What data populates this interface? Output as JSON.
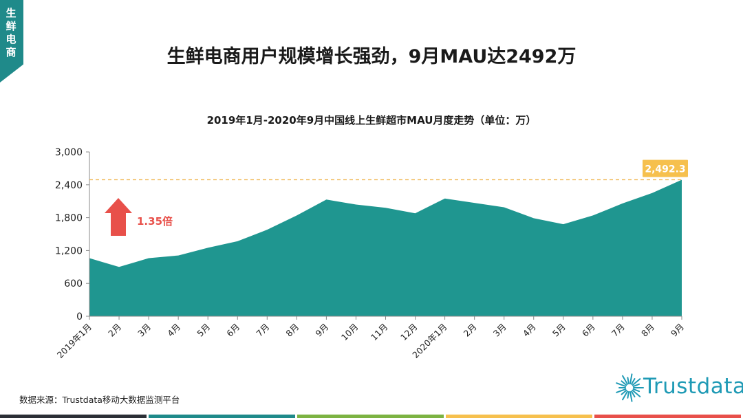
{
  "side_tab": {
    "label": "生鲜电商",
    "color": "#1f8a8a"
  },
  "page_title": "生鲜电商用户规模增长强劲，9月MAU达2492万",
  "source": "数据来源：Trustdata移动大数据监测平台",
  "logo": {
    "text": "Trustdata",
    "icon": "sunburst-icon"
  },
  "bottom_bar_colors": [
    "#2b2f36",
    "#1f8a8a",
    "#7cb342",
    "#f6c04d",
    "#e8504a"
  ],
  "chart_data": {
    "type": "area",
    "title": "2019年1月-2020年9月中国线上生鲜超市MAU月度走势（单位：万）",
    "categories": [
      "2019年1月",
      "2月",
      "3月",
      "4月",
      "5月",
      "6月",
      "7月",
      "8月",
      "9月",
      "10月",
      "11月",
      "12月",
      "2020年1月",
      "2月",
      "3月",
      "4月",
      "5月",
      "6月",
      "7月",
      "8月",
      "9月"
    ],
    "values": [
      1060,
      900,
      1060,
      1110,
      1250,
      1370,
      1580,
      1840,
      2130,
      2040,
      1980,
      1880,
      2150,
      2070,
      1990,
      1790,
      1680,
      1840,
      2060,
      2250,
      2492.3
    ],
    "ylim": [
      0,
      3000
    ],
    "yticks": [
      0,
      600,
      1200,
      1800,
      2400,
      3000
    ],
    "ytick_labels": [
      "0",
      "600",
      "1,200",
      "1,800",
      "2,400",
      "3,000"
    ],
    "reference_line": 2492.3,
    "callout_label": "2,492.3",
    "growth_label": "1.35倍",
    "colors": {
      "area": "#1f9690",
      "reference": "#f0b44c",
      "callout_bg": "#f6c04d",
      "arrow": "#e8504a",
      "growth_text": "#e8504a"
    },
    "grid": false
  }
}
